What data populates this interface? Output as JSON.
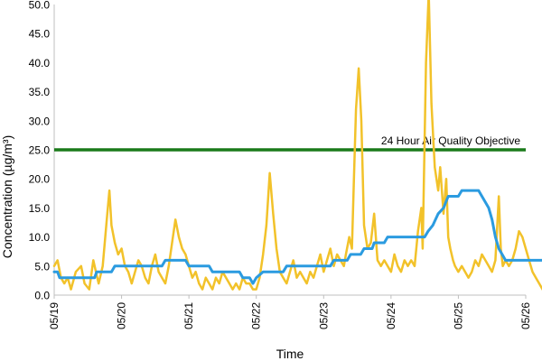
{
  "chart_data": {
    "type": "line",
    "xlabel": "Time",
    "ylabel": "Concentration (µg/m³)",
    "xlim": [
      "05/19",
      "05/26"
    ],
    "ylim": [
      0,
      50
    ],
    "y_ticks": [
      "0.0",
      "5.0",
      "10.0",
      "15.0",
      "20.0",
      "25.0",
      "30.0",
      "35.0",
      "40.0",
      "45.0",
      "50.0"
    ],
    "x_ticks": [
      "05/19",
      "05/20",
      "05/21",
      "05/22",
      "05/23",
      "05/24",
      "05/25",
      "05/26"
    ],
    "grid": false,
    "legend": "none",
    "annotation": "24 Hour Air Quality Objective",
    "objective": {
      "value": 25,
      "color": "#1a7a1a"
    },
    "series": [
      {
        "color": "#f2c22a",
        "style": "hourly",
        "points": [
          [
            0.0,
            5
          ],
          [
            0.05,
            6
          ],
          [
            0.1,
            3
          ],
          [
            0.15,
            2
          ],
          [
            0.2,
            3
          ],
          [
            0.25,
            1
          ],
          [
            0.32,
            4
          ],
          [
            0.4,
            5
          ],
          [
            0.45,
            2
          ],
          [
            0.52,
            1
          ],
          [
            0.58,
            6
          ],
          [
            0.62,
            4
          ],
          [
            0.66,
            2
          ],
          [
            0.72,
            5
          ],
          [
            0.78,
            13
          ],
          [
            0.82,
            18
          ],
          [
            0.85,
            12
          ],
          [
            0.9,
            9
          ],
          [
            0.95,
            7
          ],
          [
            1.0,
            8
          ],
          [
            1.05,
            5
          ],
          [
            1.1,
            4
          ],
          [
            1.15,
            2
          ],
          [
            1.2,
            4
          ],
          [
            1.25,
            6
          ],
          [
            1.3,
            5
          ],
          [
            1.35,
            3
          ],
          [
            1.4,
            2
          ],
          [
            1.45,
            5
          ],
          [
            1.5,
            7
          ],
          [
            1.55,
            4
          ],
          [
            1.6,
            3
          ],
          [
            1.65,
            2
          ],
          [
            1.7,
            5
          ],
          [
            1.75,
            9
          ],
          [
            1.8,
            13
          ],
          [
            1.85,
            10
          ],
          [
            1.9,
            8
          ],
          [
            1.95,
            7
          ],
          [
            2.0,
            5
          ],
          [
            2.05,
            3
          ],
          [
            2.1,
            4
          ],
          [
            2.15,
            2
          ],
          [
            2.2,
            1
          ],
          [
            2.25,
            3
          ],
          [
            2.3,
            2
          ],
          [
            2.35,
            1
          ],
          [
            2.4,
            3
          ],
          [
            2.45,
            2
          ],
          [
            2.5,
            4
          ],
          [
            2.55,
            3
          ],
          [
            2.6,
            2
          ],
          [
            2.65,
            1
          ],
          [
            2.7,
            2
          ],
          [
            2.75,
            1
          ],
          [
            2.8,
            3
          ],
          [
            2.85,
            2
          ],
          [
            2.9,
            2
          ],
          [
            2.95,
            1
          ],
          [
            3.0,
            1
          ],
          [
            3.05,
            3
          ],
          [
            3.1,
            7
          ],
          [
            3.15,
            12
          ],
          [
            3.2,
            21
          ],
          [
            3.25,
            14
          ],
          [
            3.3,
            8
          ],
          [
            3.35,
            4
          ],
          [
            3.4,
            3
          ],
          [
            3.45,
            2
          ],
          [
            3.5,
            4
          ],
          [
            3.55,
            6
          ],
          [
            3.6,
            3
          ],
          [
            3.65,
            4
          ],
          [
            3.7,
            3
          ],
          [
            3.75,
            2
          ],
          [
            3.8,
            4
          ],
          [
            3.85,
            3
          ],
          [
            3.9,
            5
          ],
          [
            3.95,
            7
          ],
          [
            4.0,
            4
          ],
          [
            4.05,
            6
          ],
          [
            4.1,
            8
          ],
          [
            4.15,
            5
          ],
          [
            4.2,
            7
          ],
          [
            4.25,
            6
          ],
          [
            4.3,
            5
          ],
          [
            4.33,
            7
          ],
          [
            4.38,
            10
          ],
          [
            4.42,
            8
          ],
          [
            4.45,
            20
          ],
          [
            4.48,
            32
          ],
          [
            4.52,
            39
          ],
          [
            4.56,
            30
          ],
          [
            4.6,
            12
          ],
          [
            4.65,
            8
          ],
          [
            4.7,
            9
          ],
          [
            4.75,
            14
          ],
          [
            4.8,
            6
          ],
          [
            4.85,
            5
          ],
          [
            4.9,
            6
          ],
          [
            4.95,
            5
          ],
          [
            5.0,
            4
          ],
          [
            5.05,
            7
          ],
          [
            5.1,
            5
          ],
          [
            5.15,
            4
          ],
          [
            5.2,
            6
          ],
          [
            5.25,
            5
          ],
          [
            5.3,
            6
          ],
          [
            5.35,
            5
          ],
          [
            5.4,
            11
          ],
          [
            5.45,
            15
          ],
          [
            5.47,
            8
          ],
          [
            5.52,
            40
          ],
          [
            5.56,
            55
          ],
          [
            5.6,
            33
          ],
          [
            5.65,
            22
          ],
          [
            5.7,
            18
          ],
          [
            5.73,
            22
          ],
          [
            5.78,
            14
          ],
          [
            5.82,
            20
          ],
          [
            5.85,
            10
          ],
          [
            5.88,
            8
          ],
          [
            5.92,
            6
          ],
          [
            5.95,
            5
          ],
          [
            6.0,
            4
          ],
          [
            6.05,
            5
          ],
          [
            6.1,
            4
          ],
          [
            6.15,
            3
          ],
          [
            6.2,
            4
          ],
          [
            6.25,
            6
          ],
          [
            6.3,
            5
          ],
          [
            6.35,
            7
          ],
          [
            6.4,
            6
          ],
          [
            6.45,
            5
          ],
          [
            6.5,
            4
          ],
          [
            6.55,
            6
          ],
          [
            6.6,
            17
          ],
          [
            6.63,
            8
          ],
          [
            6.66,
            5
          ],
          [
            6.7,
            6
          ],
          [
            6.75,
            5
          ],
          [
            6.8,
            6
          ],
          [
            6.85,
            8
          ],
          [
            6.9,
            11
          ],
          [
            6.95,
            10
          ],
          [
            7.0,
            8
          ],
          [
            7.05,
            6
          ],
          [
            7.1,
            4
          ],
          [
            7.15,
            3
          ],
          [
            7.2,
            2
          ],
          [
            7.25,
            1
          ],
          [
            7.3,
            2
          ],
          [
            7.35,
            1
          ],
          [
            7.4,
            2
          ],
          [
            7.45,
            2
          ],
          [
            7.5,
            3
          ],
          [
            7.55,
            4
          ],
          [
            7.6,
            5
          ],
          [
            7.65,
            6
          ],
          [
            7.7,
            5
          ],
          [
            7.75,
            4
          ],
          [
            7.8,
            6
          ],
          [
            7.85,
            5
          ],
          [
            7.9,
            4
          ]
        ]
      },
      {
        "color": "#2b9be0",
        "style": "rolling_24h",
        "points": [
          [
            0.0,
            4
          ],
          [
            0.05,
            4
          ],
          [
            0.08,
            3
          ],
          [
            0.6,
            3
          ],
          [
            0.63,
            4
          ],
          [
            0.85,
            4
          ],
          [
            0.9,
            5
          ],
          [
            1.6,
            5
          ],
          [
            1.65,
            6
          ],
          [
            1.95,
            6
          ],
          [
            2.0,
            5
          ],
          [
            2.3,
            5
          ],
          [
            2.35,
            4
          ],
          [
            2.75,
            4
          ],
          [
            2.8,
            3
          ],
          [
            2.9,
            3
          ],
          [
            2.95,
            2
          ],
          [
            3.0,
            3
          ],
          [
            3.1,
            4
          ],
          [
            3.4,
            4
          ],
          [
            3.45,
            5
          ],
          [
            4.1,
            5
          ],
          [
            4.15,
            6
          ],
          [
            4.35,
            6
          ],
          [
            4.4,
            7
          ],
          [
            4.55,
            7
          ],
          [
            4.6,
            8
          ],
          [
            4.72,
            8
          ],
          [
            4.75,
            9
          ],
          [
            4.9,
            9
          ],
          [
            4.95,
            10
          ],
          [
            5.5,
            10
          ],
          [
            5.55,
            11
          ],
          [
            5.62,
            12
          ],
          [
            5.7,
            14
          ],
          [
            5.78,
            15
          ],
          [
            5.85,
            17
          ],
          [
            6.0,
            17
          ],
          [
            6.05,
            18
          ],
          [
            6.3,
            18
          ],
          [
            6.35,
            17
          ],
          [
            6.45,
            15
          ],
          [
            6.5,
            13
          ],
          [
            6.55,
            10
          ],
          [
            6.6,
            8
          ],
          [
            6.65,
            7
          ],
          [
            6.7,
            6
          ],
          [
            7.6,
            6
          ],
          [
            7.65,
            5
          ],
          [
            7.9,
            5
          ]
        ]
      }
    ]
  }
}
